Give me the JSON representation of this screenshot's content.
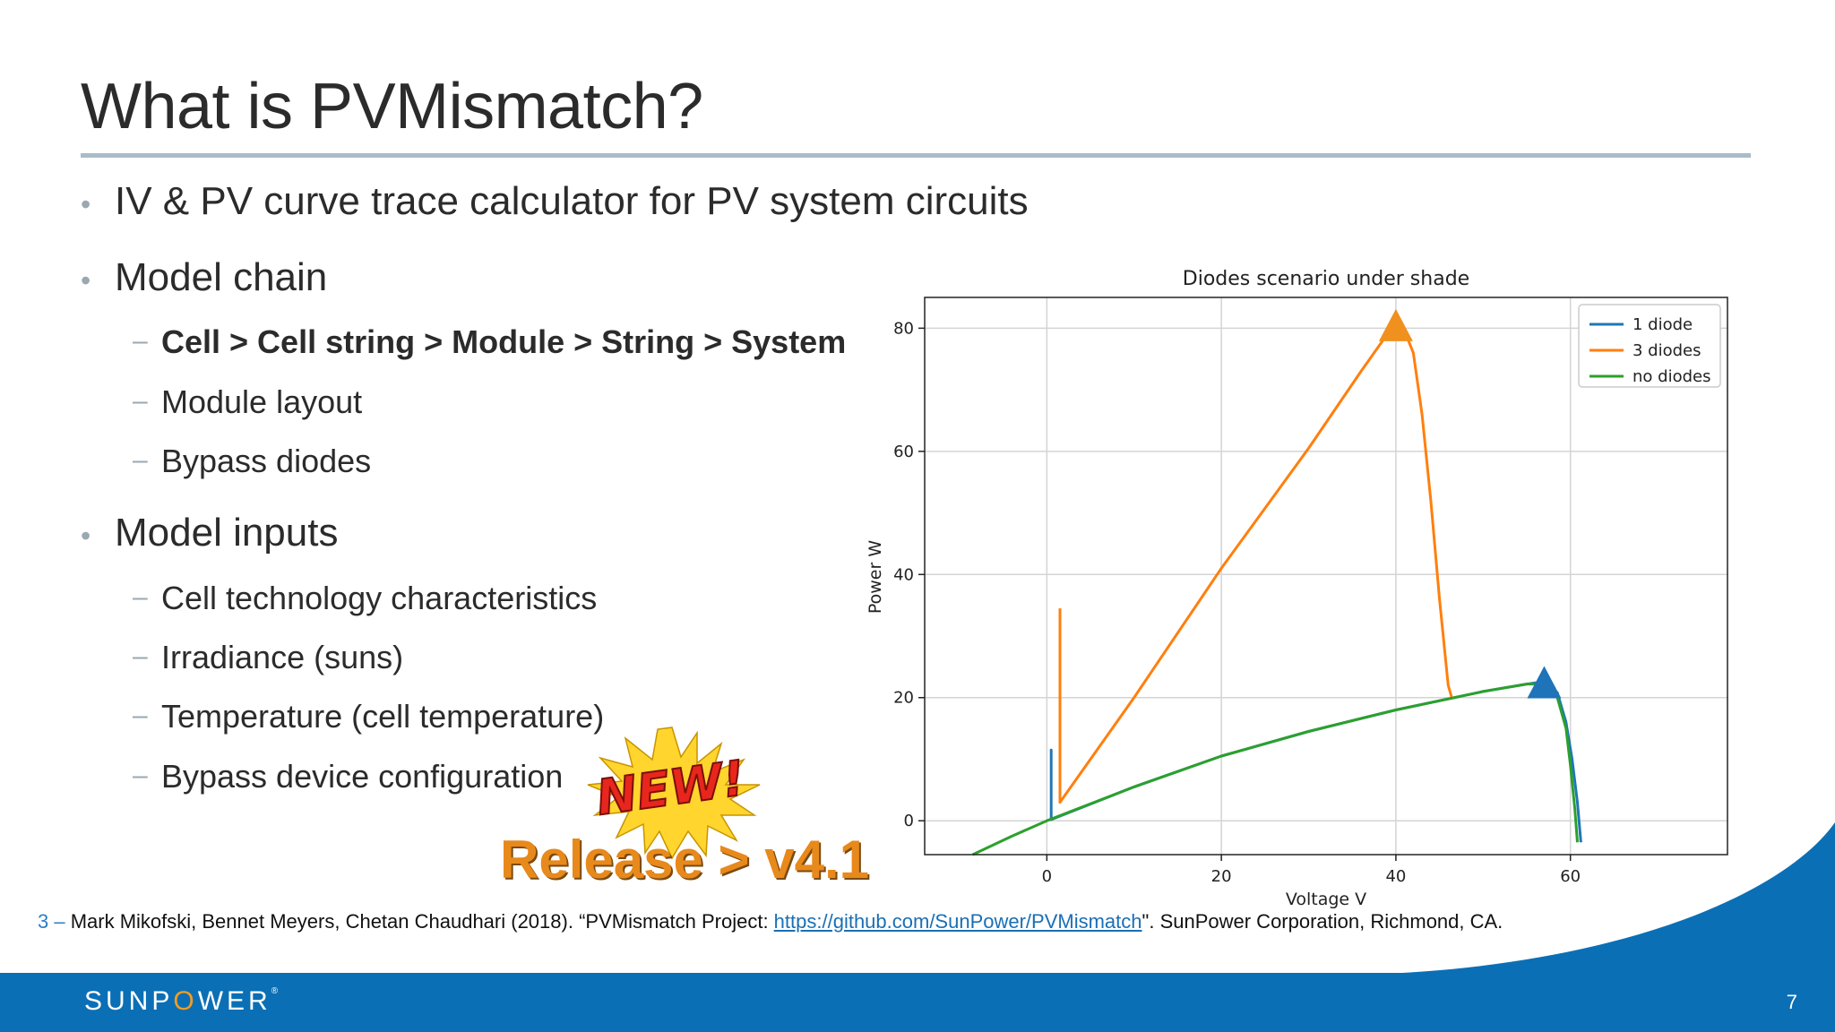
{
  "slide": {
    "title": "What is PVMismatch?",
    "bullets": [
      {
        "text": "IV & PV curve trace calculator for PV system circuits"
      },
      {
        "text": "Model chain",
        "sub": [
          "Cell > Cell string > Module > String > System",
          "Module layout",
          "Bypass diodes"
        ]
      },
      {
        "text": "Model inputs",
        "sub": [
          "Cell technology characteristics",
          "Irradiance (suns)",
          "Temperature (cell temperature)",
          "Bypass device configuration"
        ]
      }
    ],
    "badge_new": "NEW!",
    "release": "Release > v4.1",
    "reference": {
      "number": "3 –",
      "text_before": " Mark Mikofski, Bennet Meyers, Chetan Chaudhari (2018). “PVMismatch Project: ",
      "link": "https://github.com/SunPower/PVMismatch",
      "text_after": "\". SunPower Corporation, Richmond, CA."
    },
    "footer": {
      "logo_pre": "SUNP",
      "logo_o": "O",
      "logo_post": "WER",
      "logo_mark": "®",
      "page": "7"
    },
    "colors": {
      "footer": "#0b6fb5",
      "rule": "#a9bcc7",
      "accent": "#f39c24"
    }
  },
  "chart_data": {
    "type": "line",
    "title": "Diodes scenario under shade",
    "xlabel": "Voltage V",
    "ylabel": "Power W",
    "xlim": [
      -14,
      78
    ],
    "ylim": [
      -5.5,
      85
    ],
    "xticks": [
      0,
      20,
      40,
      60
    ],
    "yticks": [
      0,
      20,
      40,
      60,
      80
    ],
    "grid": true,
    "legend_position": "top-right",
    "series": [
      {
        "name": "1 diode",
        "color": "#1f77b4",
        "x": [
          0.5,
          0.5,
          0.5,
          10,
          20,
          30,
          40,
          50,
          55,
          57,
          58.5,
          59.5,
          60.2,
          60.8,
          61.2
        ],
        "y": [
          0,
          11.5,
          0.2,
          5.5,
          10.5,
          14.5,
          18,
          21,
          22.2,
          22.6,
          20.8,
          16,
          10,
          3,
          -3.5
        ]
      },
      {
        "name": "3 diodes",
        "color": "#ff7f0e",
        "x": [
          1.5,
          1.5,
          1.5,
          10,
          20,
          30,
          36,
          39,
          40,
          41,
          42,
          43,
          44,
          45,
          46,
          46.4
        ],
        "y": [
          34.5,
          30,
          3,
          20,
          41,
          60.5,
          73,
          79,
          80.5,
          79.5,
          76,
          66,
          52,
          36,
          22,
          20
        ]
      },
      {
        "name": "no diodes",
        "color": "#2ca02c",
        "x": [
          -8.5,
          -4,
          0,
          10,
          20,
          30,
          40,
          50,
          55,
          57,
          58.5,
          59.5,
          60,
          60.5,
          60.8
        ],
        "y": [
          -5.5,
          -2.5,
          0,
          5.5,
          10.5,
          14.5,
          18,
          21,
          22.2,
          22.2,
          20,
          15,
          9,
          2,
          -3.5
        ]
      }
    ],
    "markers": [
      {
        "x": 40,
        "y": 80.5,
        "color": "#f0901e"
      },
      {
        "x": 57,
        "y": 22.5,
        "color": "#1f73b8"
      }
    ]
  }
}
